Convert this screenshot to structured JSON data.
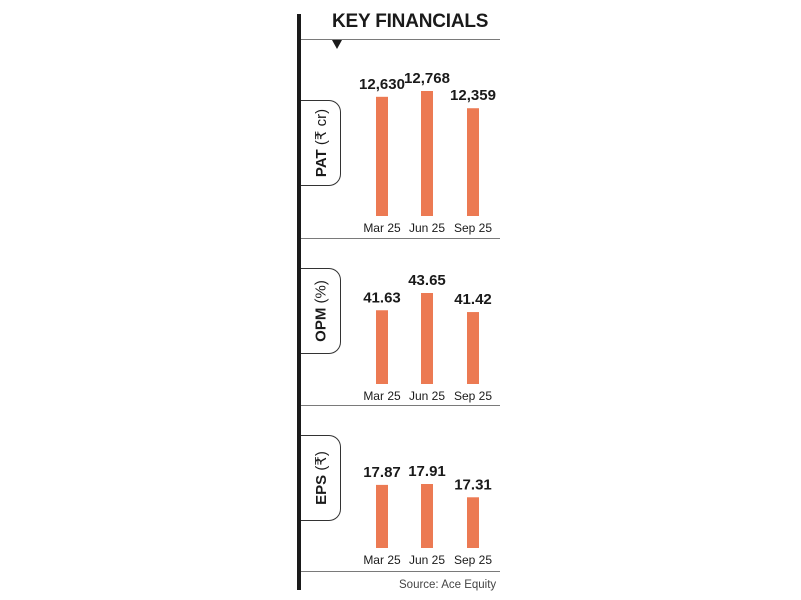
{
  "title": "KEY FINANCIALS",
  "source": "Source: Ace Equity",
  "colors": {
    "bar": "#ec7a53",
    "text": "#1a1a1a",
    "rule": "#7a7a7a"
  },
  "chart_data": [
    {
      "type": "bar",
      "ylabel_main": "PAT",
      "ylabel_unit": "(₹ cr)",
      "categories": [
        "Mar 25",
        "Jun 25",
        "Sep 25"
      ],
      "values": [
        12630,
        12768,
        12359
      ],
      "value_labels": [
        "12,630",
        "12,768",
        "12,359"
      ]
    },
    {
      "type": "bar",
      "ylabel_main": "OPM",
      "ylabel_unit": "(%)",
      "categories": [
        "Mar 25",
        "Jun 25",
        "Sep 25"
      ],
      "values": [
        41.63,
        43.65,
        41.42
      ],
      "value_labels": [
        "41.63",
        "43.65",
        "41.42"
      ]
    },
    {
      "type": "bar",
      "ylabel_main": "EPS",
      "ylabel_unit": "(₹)",
      "categories": [
        "Mar 25",
        "Jun 25",
        "Sep 25"
      ],
      "values": [
        17.87,
        17.91,
        17.31
      ],
      "value_labels": [
        "17.87",
        "17.91",
        "17.31"
      ]
    }
  ]
}
